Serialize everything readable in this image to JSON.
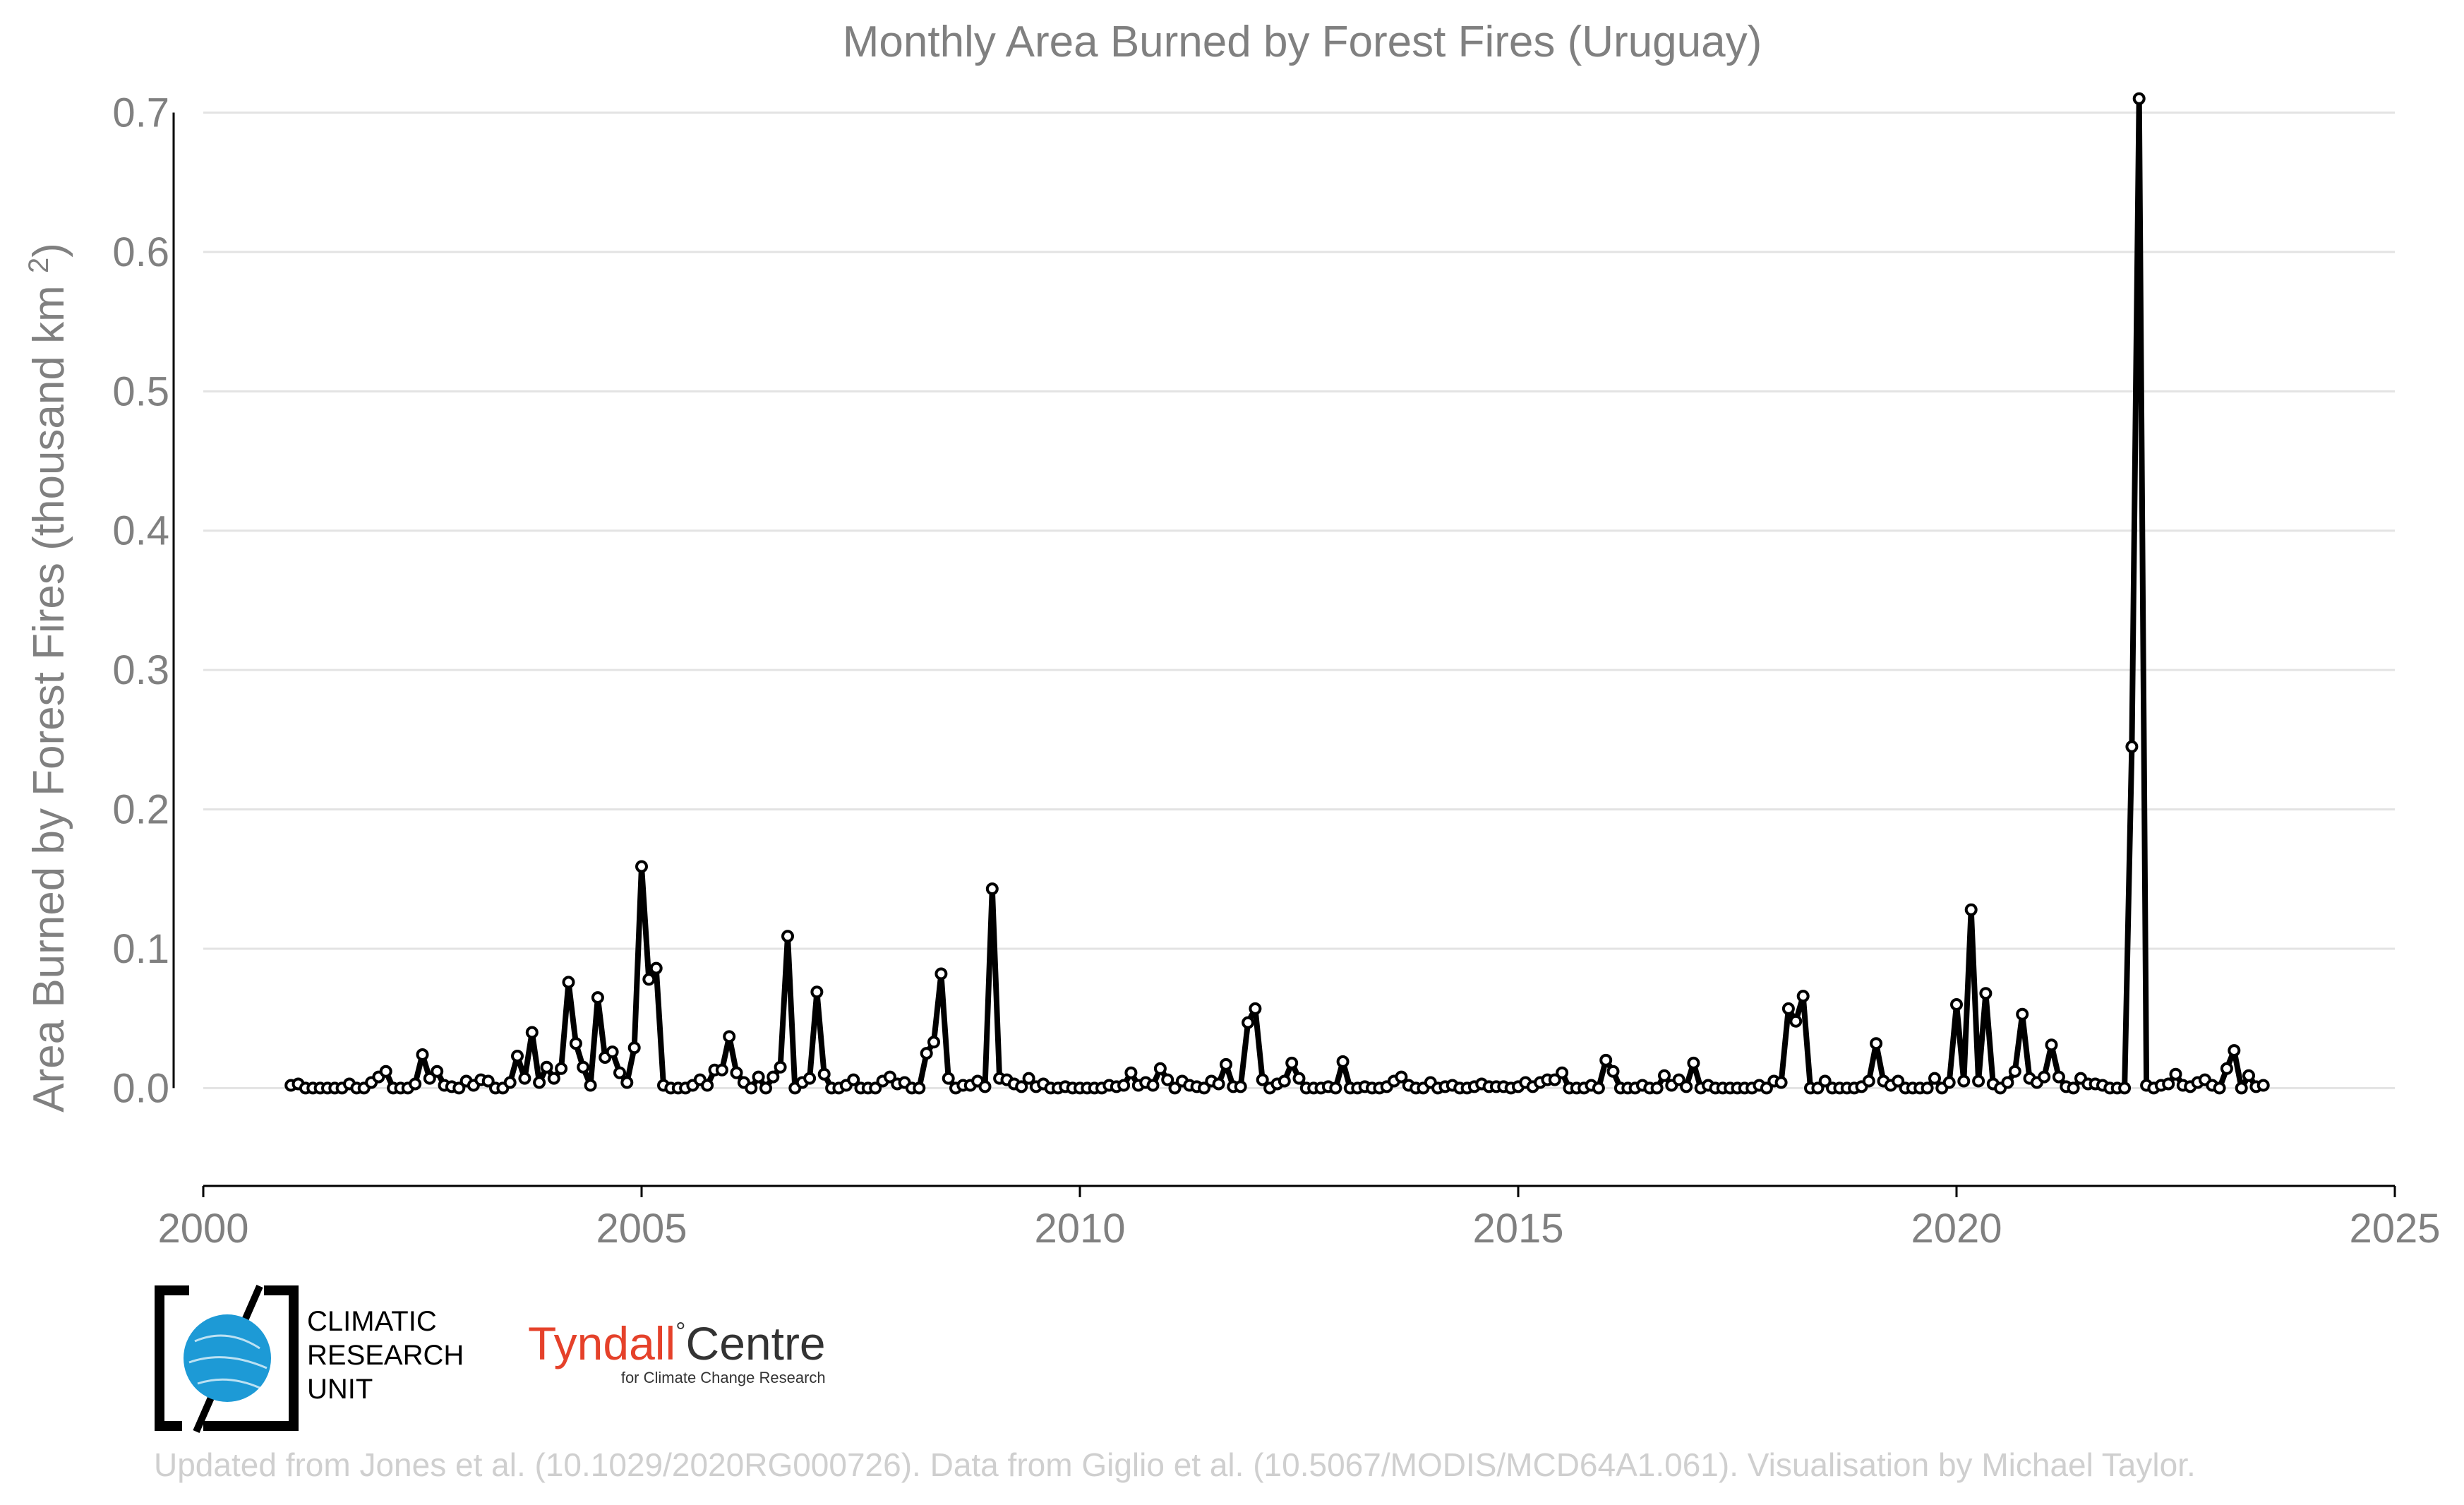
{
  "chart_data": {
    "type": "line",
    "title": "Monthly Area Burned by Forest Fires (Uruguay)",
    "ylabel": "Area Burned by Forest Fires (thousand km²)",
    "xlabel": "",
    "xlim": [
      2000,
      2025
    ],
    "ylim": [
      -0.055,
      0.72
    ],
    "x_ticks": [
      "2000",
      "2005",
      "2010",
      "2015",
      "2020",
      "2025"
    ],
    "y_ticks": [
      "0.0",
      "0.1",
      "0.2",
      "0.3",
      "0.4",
      "0.5",
      "0.6",
      "0.7"
    ],
    "grid": true,
    "markers": true,
    "series": [
      {
        "color": "#000000",
        "start": "2001-01",
        "frequency": "monthly",
        "values": [
          0.002,
          0.003,
          0.0,
          0.0,
          0.0,
          0.0,
          0.0,
          0.0,
          0.003,
          0.0,
          0.0,
          0.004,
          0.008,
          0.012,
          0.0,
          0.0,
          0.0,
          0.003,
          0.024,
          0.007,
          0.012,
          0.002,
          0.001,
          0.0,
          0.005,
          0.002,
          0.006,
          0.005,
          0.0,
          0.0,
          0.004,
          0.023,
          0.007,
          0.04,
          0.004,
          0.015,
          0.007,
          0.014,
          0.076,
          0.032,
          0.015,
          0.002,
          0.065,
          0.022,
          0.026,
          0.011,
          0.004,
          0.029,
          0.159,
          0.078,
          0.086,
          0.002,
          0.0,
          0.0,
          0.0,
          0.002,
          0.006,
          0.002,
          0.013,
          0.013,
          0.037,
          0.011,
          0.004,
          0.0,
          0.008,
          0.0,
          0.008,
          0.015,
          0.109,
          0.0,
          0.004,
          0.007,
          0.069,
          0.01,
          0.0,
          0.0,
          0.002,
          0.006,
          0.0,
          0.0,
          0.0,
          0.005,
          0.008,
          0.003,
          0.004,
          0.0,
          0.0,
          0.025,
          0.033,
          0.082,
          0.007,
          0.0,
          0.002,
          0.002,
          0.005,
          0.001,
          0.143,
          0.007,
          0.006,
          0.003,
          0.001,
          0.007,
          0.001,
          0.003,
          0.0,
          0.0,
          0.001,
          0.0,
          0.0,
          0.0,
          0.0,
          0.0,
          0.002,
          0.001,
          0.002,
          0.011,
          0.002,
          0.004,
          0.002,
          0.014,
          0.006,
          0.0,
          0.005,
          0.002,
          0.001,
          0.0,
          0.005,
          0.003,
          0.017,
          0.001,
          0.001,
          0.047,
          0.057,
          0.006,
          0.0,
          0.003,
          0.005,
          0.018,
          0.007,
          0.0,
          0.0,
          0.0,
          0.001,
          0.0,
          0.019,
          0.0,
          0.0,
          0.001,
          0.0,
          0.0,
          0.001,
          0.005,
          0.008,
          0.002,
          0.0,
          0.0,
          0.004,
          0.0,
          0.001,
          0.002,
          0.0,
          0.0,
          0.001,
          0.003,
          0.001,
          0.001,
          0.001,
          0.0,
          0.001,
          0.004,
          0.001,
          0.004,
          0.006,
          0.006,
          0.011,
          0.0,
          0.0,
          0.0,
          0.002,
          0.0,
          0.02,
          0.012,
          0.0,
          0.0,
          0.0,
          0.002,
          0.0,
          0.0,
          0.009,
          0.002,
          0.006,
          0.001,
          0.018,
          0.0,
          0.002,
          0.0,
          0.0,
          0.0,
          0.0,
          0.0,
          0.0,
          0.002,
          0.0,
          0.005,
          0.004,
          0.057,
          0.048,
          0.066,
          0.0,
          0.0,
          0.005,
          0.0,
          0.0,
          0.0,
          0.0,
          0.001,
          0.005,
          0.032,
          0.005,
          0.002,
          0.005,
          0.0,
          0.0,
          0.0,
          0.0,
          0.007,
          0.0,
          0.004,
          0.06,
          0.005,
          0.128,
          0.005,
          0.068,
          0.003,
          0.0,
          0.004,
          0.012,
          0.053,
          0.007,
          0.004,
          0.008,
          0.031,
          0.008,
          0.001,
          0.0,
          0.007,
          0.003,
          0.003,
          0.002,
          0.0,
          0.0,
          0.0,
          0.245,
          0.71,
          0.002,
          0.0,
          0.002,
          0.003,
          0.01,
          0.002,
          0.001,
          0.004,
          0.006,
          0.002,
          0.0,
          0.014,
          0.027,
          0.0,
          0.009,
          0.001,
          0.002
        ]
      }
    ]
  },
  "logos": {
    "cru": {
      "line1": "CLIMATIC",
      "line2": "RESEARCH",
      "line3": "UNIT",
      "globe_color": "#1d9ad6"
    },
    "tyndall": {
      "part1": "Tyndall",
      "degree": "°",
      "part2": "Centre",
      "subtitle": "for Climate Change Research",
      "accent": "#e5412a"
    }
  },
  "footer": "Updated from Jones et al. (10.1029/2020RG000726). Data from Giglio et al. (10.5067/MODIS/MCD64A1.061). Visualisation by Michael Taylor."
}
